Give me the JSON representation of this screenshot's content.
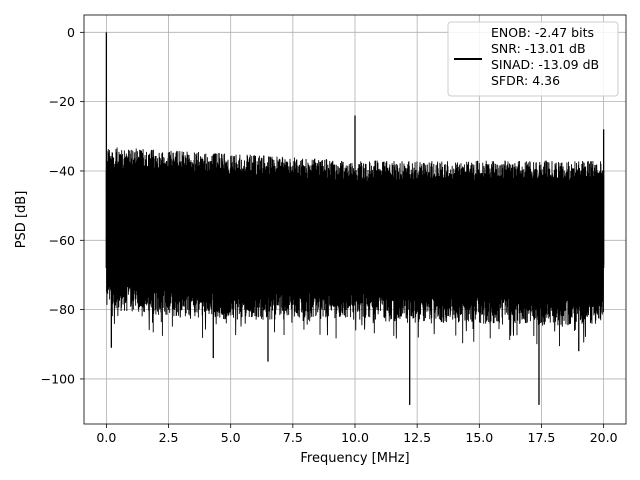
{
  "chart_data": {
    "type": "line",
    "title": "",
    "xlabel": "Frequency [MHz]",
    "ylabel": "PSD [dB]",
    "xlim": [
      -0.9,
      20.9
    ],
    "ylim": [
      -113,
      5
    ],
    "grid": true,
    "legend_placement": "top-right",
    "line_color": "#000000",
    "xticks": [
      0.0,
      2.5,
      5.0,
      7.5,
      10.0,
      12.5,
      15.0,
      17.5,
      20.0
    ],
    "xtick_labels": [
      "0.0",
      "2.5",
      "5.0",
      "7.5",
      "10.0",
      "12.5",
      "15.0",
      "17.5",
      "20.0"
    ],
    "yticks": [
      0,
      -20,
      -40,
      -60,
      -80,
      -100
    ],
    "ytick_labels": [
      "0",
      "−20",
      "−40",
      "−60",
      "−80",
      "−100"
    ],
    "legend": [
      "ENOB: -2.47 bits",
      "SNR: -13.01 dB",
      "SINAD: -13.09 dB",
      "SFDR: 4.36"
    ],
    "series": [
      {
        "envelope": {
          "x": [
            0.0,
            2.5,
            5.0,
            7.5,
            10.0,
            12.5,
            15.0,
            17.5,
            20.0
          ],
          "upper": [
            -33,
            -34,
            -35,
            -36,
            -37,
            -37,
            -37,
            -37,
            -37
          ],
          "lower": [
            -80,
            -82,
            -83,
            -83,
            -83,
            -84,
            -84,
            -85,
            -84
          ]
        },
        "peaks": [
          {
            "x": 0.0,
            "y": 0.0
          },
          {
            "x": 10.0,
            "y": -24
          },
          {
            "x": 20.0,
            "y": -28
          }
        ],
        "dips": [
          {
            "x": 0.2,
            "y": -91
          },
          {
            "x": 4.3,
            "y": -94
          },
          {
            "x": 6.5,
            "y": -95
          },
          {
            "x": 12.2,
            "y": -107.5
          },
          {
            "x": 17.4,
            "y": -107.5
          },
          {
            "x": 19.0,
            "y": -92
          }
        ]
      }
    ]
  }
}
